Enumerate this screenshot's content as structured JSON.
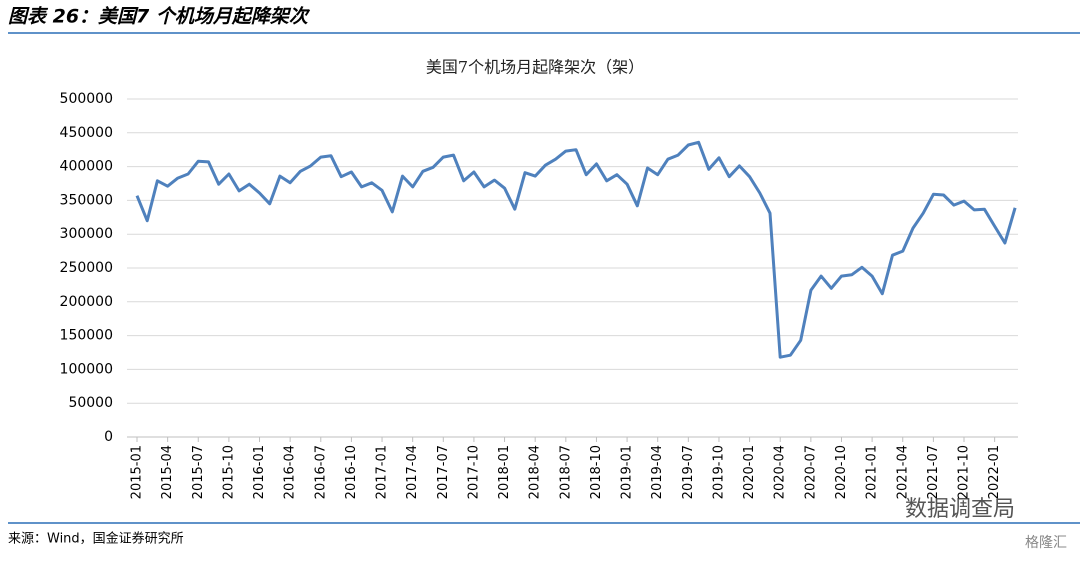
{
  "header": {
    "title": "图表 26：美国7 个机场月起降架次"
  },
  "footer": {
    "source": "来源：Wind，国金证券研究所"
  },
  "watermark": {
    "text": "数据调查局",
    "brand": "格隆汇"
  },
  "chart_data": {
    "type": "line",
    "title": "美国7个机场月起降架次（架）",
    "color": "#4f81bd",
    "grid": true,
    "ylim": [
      0,
      500000
    ],
    "yticks": [
      0,
      50000,
      100000,
      150000,
      200000,
      250000,
      300000,
      350000,
      400000,
      450000,
      500000
    ],
    "categories": [
      "2015-01",
      null,
      null,
      "2015-04",
      null,
      null,
      "2015-07",
      null,
      null,
      "2015-10",
      null,
      null,
      "2016-01",
      null,
      null,
      "2016-04",
      null,
      null,
      "2016-07",
      null,
      null,
      "2016-10",
      null,
      null,
      "2017-01",
      null,
      null,
      "2017-04",
      null,
      null,
      "2017-07",
      null,
      null,
      "2017-10",
      null,
      null,
      "2018-01",
      null,
      null,
      "2018-04",
      null,
      null,
      "2018-07",
      null,
      null,
      "2018-10",
      null,
      null,
      "2019-01",
      null,
      null,
      "2019-04",
      null,
      null,
      "2019-07",
      null,
      null,
      "2019-10",
      null,
      null,
      "2020-01",
      null,
      null,
      "2020-04",
      null,
      null,
      "2020-07",
      null,
      null,
      "2020-10",
      null,
      null,
      "2021-01",
      null,
      null,
      "2021-04",
      null,
      null,
      "2021-07",
      null,
      null,
      "2021-10",
      null,
      null,
      "2022-01",
      null,
      null
    ],
    "values": [
      357000,
      320000,
      379000,
      371000,
      383000,
      389000,
      408000,
      407000,
      374000,
      389000,
      364000,
      374000,
      361000,
      345000,
      386000,
      376000,
      393000,
      401000,
      414000,
      416000,
      385000,
      392000,
      370000,
      376000,
      365000,
      333000,
      386000,
      370000,
      393000,
      399000,
      414000,
      417000,
      379000,
      392000,
      370000,
      380000,
      368000,
      337000,
      391000,
      386000,
      402000,
      411000,
      423000,
      425000,
      388000,
      404000,
      379000,
      388000,
      374000,
      342000,
      398000,
      388000,
      411000,
      417000,
      432000,
      436000,
      396000,
      413000,
      385000,
      401000,
      385000,
      361000,
      331000,
      118000,
      121000,
      143000,
      217000,
      238000,
      220000,
      238000,
      240000,
      251000,
      238000,
      212000,
      269000,
      275000,
      309000,
      331000,
      359000,
      358000,
      343000,
      349000,
      336000,
      337000,
      312000,
      287000,
      339000
    ]
  }
}
